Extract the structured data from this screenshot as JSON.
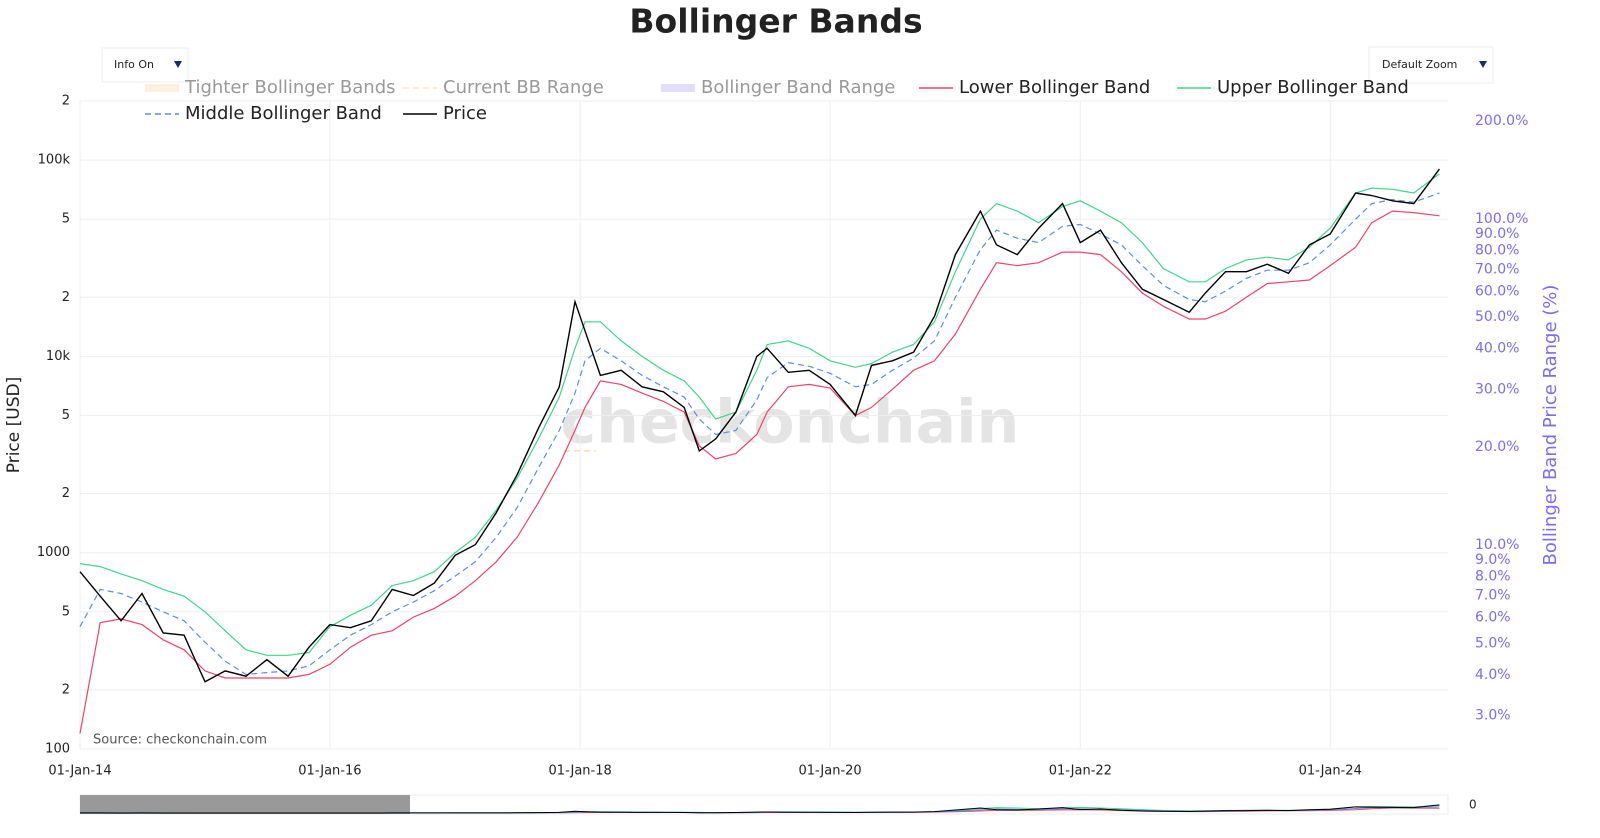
{
  "chart_data": {
    "type": "line",
    "title": "Bollinger Bands",
    "y_label": "Price [USD]",
    "y2_label": "Bollinger Band Price Range (%)",
    "watermark": "checkonchain",
    "source": "Source: checkonchain.com",
    "controls": [
      "Info On",
      "Default Zoom"
    ],
    "rangeslider_label": "0",
    "log_y": true,
    "log_y2": true,
    "grid": true,
    "x": [
      "2014-01-01",
      "2014-03-01",
      "2014-05-01",
      "2014-07-01",
      "2014-09-01",
      "2014-11-01",
      "2015-01-01",
      "2015-03-01",
      "2015-05-01",
      "2015-07-01",
      "2015-09-01",
      "2015-11-01",
      "2016-01-01",
      "2016-03-01",
      "2016-05-01",
      "2016-07-01",
      "2016-09-01",
      "2016-11-01",
      "2017-01-01",
      "2017-03-01",
      "2017-05-01",
      "2017-07-01",
      "2017-09-01",
      "2017-11-01",
      "2017-12-17",
      "2018-01-15",
      "2018-03-01",
      "2018-05-01",
      "2018-07-01",
      "2018-09-01",
      "2018-11-01",
      "2018-12-15",
      "2019-02-01",
      "2019-04-01",
      "2019-06-01",
      "2019-07-01",
      "2019-09-01",
      "2019-11-01",
      "2020-01-01",
      "2020-03-15",
      "2020-05-01",
      "2020-07-01",
      "2020-09-01",
      "2020-11-01",
      "2021-01-01",
      "2021-03-15",
      "2021-05-01",
      "2021-07-01",
      "2021-09-01",
      "2021-11-10",
      "2022-01-01",
      "2022-03-01",
      "2022-05-01",
      "2022-07-01",
      "2022-09-01",
      "2022-11-15",
      "2023-01-01",
      "2023-03-01",
      "2023-05-01",
      "2023-07-01",
      "2023-09-01",
      "2023-11-01",
      "2024-01-01",
      "2024-03-15",
      "2024-05-01",
      "2024-07-01",
      "2024-09-01",
      "2024-11-15"
    ],
    "series": [
      {
        "name": "Tighter Bollinger Bands",
        "color": "#fde3c6",
        "style": "band",
        "legend_dimmed": true
      },
      {
        "name": "Current BB Range",
        "color": "#fdd49a",
        "style": "dash",
        "legend_dimmed": true,
        "x": [
          "2017-11-15",
          "2018-02-15"
        ],
        "values": [
          3300,
          3300
        ]
      },
      {
        "name": "Bollinger Band Range",
        "color": "#c9c1f8",
        "style": "band",
        "legend_dimmed": true
      },
      {
        "name": "Lower Bollinger Band",
        "color": "#f0426a",
        "style": "solid",
        "values": [
          120,
          440,
          460,
          430,
          360,
          320,
          250,
          230,
          230,
          230,
          230,
          240,
          270,
          330,
          380,
          400,
          470,
          520,
          600,
          720,
          900,
          1200,
          1800,
          2800,
          4200,
          5500,
          7500,
          7200,
          6500,
          5900,
          5200,
          3500,
          3000,
          3200,
          4000,
          5200,
          7000,
          7200,
          6900,
          5000,
          5500,
          6800,
          8500,
          9500,
          13000,
          22000,
          30000,
          29000,
          30000,
          34000,
          34000,
          33000,
          27000,
          21000,
          18000,
          15500,
          15500,
          17000,
          20000,
          23500,
          24000,
          24500,
          29000,
          36000,
          48000,
          55000,
          54000,
          52000
        ]
      },
      {
        "name": "Upper Bollinger Band",
        "color": "#3fd68c",
        "style": "solid",
        "values": [
          880,
          850,
          780,
          720,
          650,
          600,
          500,
          400,
          320,
          300,
          300,
          310,
          420,
          480,
          540,
          680,
          720,
          800,
          1000,
          1200,
          1650,
          2400,
          3800,
          6200,
          11000,
          15000,
          15000,
          12000,
          10000,
          8500,
          7500,
          6200,
          4800,
          5200,
          8500,
          11500,
          12000,
          11000,
          9500,
          8800,
          9200,
          10500,
          11500,
          15000,
          27000,
          50000,
          60000,
          55000,
          48000,
          58000,
          62000,
          55000,
          48000,
          38000,
          28000,
          24000,
          24000,
          28000,
          31000,
          32000,
          31000,
          36000,
          45000,
          68000,
          72000,
          71000,
          68000,
          85000
        ]
      },
      {
        "name": "Middle Bollinger Band",
        "color": "#5b8fe0",
        "style": "dash",
        "values": [
          420,
          650,
          620,
          560,
          500,
          450,
          350,
          280,
          240,
          245,
          250,
          265,
          320,
          380,
          430,
          500,
          560,
          640,
          760,
          900,
          1200,
          1700,
          2700,
          4200,
          6500,
          9500,
          11000,
          9500,
          8000,
          7000,
          6200,
          4800,
          4000,
          4200,
          6000,
          7800,
          9300,
          8900,
          8200,
          7000,
          7200,
          8500,
          9800,
          12000,
          20000,
          35000,
          44000,
          40000,
          38000,
          46000,
          47000,
          42000,
          37000,
          29000,
          23000,
          19500,
          19000,
          21500,
          25000,
          27500,
          27500,
          30000,
          37000,
          50000,
          60000,
          63000,
          61000,
          68000
        ]
      },
      {
        "name": "Price",
        "color": "#000000",
        "style": "solid",
        "values": [
          800,
          600,
          450,
          620,
          390,
          380,
          220,
          250,
          235,
          285,
          235,
          330,
          430,
          415,
          450,
          650,
          605,
          700,
          970,
          1100,
          1600,
          2500,
          4300,
          7000,
          19000,
          13500,
          8000,
          8500,
          7000,
          6600,
          5500,
          3300,
          3800,
          5200,
          10000,
          11000,
          8300,
          8500,
          7200,
          5000,
          9000,
          9500,
          10500,
          16000,
          33000,
          55000,
          37000,
          33000,
          45000,
          60000,
          38000,
          44000,
          30000,
          22000,
          19500,
          16800,
          21000,
          27000,
          27000,
          29500,
          26500,
          37000,
          42000,
          68000,
          66000,
          62000,
          60000,
          90000
        ]
      }
    ],
    "xlim": [
      "2014-01-01",
      "2024-12-10"
    ],
    "xticks": [
      {
        "value": "2014-01-01",
        "label": "01-Jan-14"
      },
      {
        "value": "2016-01-01",
        "label": "01-Jan-16"
      },
      {
        "value": "2018-01-01",
        "label": "01-Jan-18"
      },
      {
        "value": "2020-01-01",
        "label": "01-Jan-20"
      },
      {
        "value": "2022-01-01",
        "label": "01-Jan-22"
      },
      {
        "value": "2024-01-01",
        "label": "01-Jan-24"
      }
    ],
    "ylim": [
      100,
      200000
    ],
    "yticks": [
      100,
      {
        "value": 200,
        "label": "2"
      },
      {
        "value": 500,
        "label": "5"
      },
      1000,
      {
        "value": 2000,
        "label": "2"
      },
      {
        "value": 5000,
        "label": "5"
      },
      {
        "value": 10000,
        "label": "10k"
      },
      {
        "value": 20000,
        "label": "2"
      },
      {
        "value": 50000,
        "label": "5"
      },
      {
        "value": 100000,
        "label": "100k"
      },
      {
        "value": 200000,
        "label": "2"
      }
    ],
    "y2lim": [
      2.37,
      230
    ],
    "y2ticks": [
      {
        "value": 3,
        "label": "3.0%"
      },
      {
        "value": 4,
        "label": "4.0%"
      },
      {
        "value": 5,
        "label": "5.0%"
      },
      {
        "value": 6,
        "label": "6.0%"
      },
      {
        "value": 7,
        "label": "7.0%"
      },
      {
        "value": 8,
        "label": "8.0%"
      },
      {
        "value": 9,
        "label": "9.0%"
      },
      {
        "value": 10,
        "label": "10.0%"
      },
      {
        "value": 20,
        "label": "20.0%"
      },
      {
        "value": 30,
        "label": "30.0%"
      },
      {
        "value": 40,
        "label": "40.0%"
      },
      {
        "value": 50,
        "label": "50.0%"
      },
      {
        "value": 60,
        "label": "60.0%"
      },
      {
        "value": 70,
        "label": "70.0%"
      },
      {
        "value": 80,
        "label": "80.0%"
      },
      {
        "value": 90,
        "label": "90.0%"
      },
      {
        "value": 100,
        "label": "100.0%"
      },
      {
        "value": 200,
        "label": "200.0%"
      }
    ],
    "y2_color": "#7b6cf0"
  }
}
